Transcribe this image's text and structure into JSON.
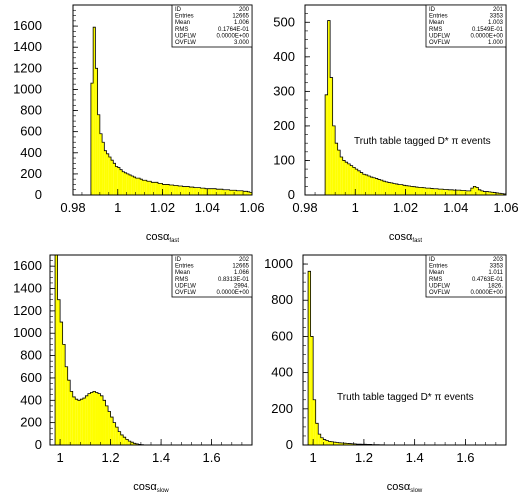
{
  "colors": {
    "fill": "#ffff00",
    "line": "#000000",
    "background": "#ffffff"
  },
  "chart_data": [
    {
      "type": "histogram",
      "xlabel_main": "cosα",
      "xlabel_sub": "fast",
      "xlim": [
        0.98,
        1.06
      ],
      "ylim": [
        0,
        1800
      ],
      "xticks": [
        0.98,
        1,
        1.02,
        1.04,
        1.06
      ],
      "xtick_labels": [
        "0.98",
        "1",
        "1.02",
        "1.04",
        "1.06"
      ],
      "yticks": [
        0,
        200,
        400,
        600,
        800,
        1000,
        1200,
        1400,
        1600
      ],
      "ytick_labels": [
        "0",
        "200",
        "400",
        "600",
        "800",
        "1000",
        "1200",
        "1400",
        "1600"
      ],
      "stats": [
        {
          "label": "ID",
          "value": "200"
        },
        {
          "label": "Entries",
          "value": "12665"
        },
        {
          "label": "Mean",
          "value": "1.006"
        },
        {
          "label": "RMS",
          "value": "0.1764E-01"
        },
        {
          "label": "UDFLW",
          "value": "0.0000E+00"
        },
        {
          "label": "OVFLW",
          "value": "3.000"
        }
      ],
      "annotation": "",
      "bin_start": 0.988,
      "bin_width": 0.001,
      "values": [
        1060,
        1590,
        1200,
        760,
        580,
        500,
        420,
        390,
        360,
        330,
        300,
        270,
        260,
        240,
        220,
        210,
        200,
        190,
        180,
        170,
        160,
        160,
        150,
        140,
        140,
        130,
        130,
        120,
        120,
        120,
        110,
        110,
        100,
        100,
        100,
        95,
        95,
        90,
        90,
        85,
        85,
        80,
        80,
        80,
        75,
        75,
        70,
        70,
        70,
        65,
        65,
        60,
        60,
        60,
        60,
        60,
        55,
        55,
        55,
        50,
        50,
        50,
        45,
        45,
        45,
        40,
        40,
        40,
        35,
        35,
        30,
        25
      ]
    },
    {
      "type": "histogram",
      "xlabel_main": "cosα",
      "xlabel_sub": "fast",
      "xlim": [
        0.98,
        1.06
      ],
      "ylim": [
        0,
        550
      ],
      "xticks": [
        0.98,
        1,
        1.02,
        1.04,
        1.06
      ],
      "xtick_labels": [
        "0.98",
        "1",
        "1.02",
        "1.04",
        "1.06"
      ],
      "yticks": [
        0,
        100,
        200,
        300,
        400,
        500
      ],
      "ytick_labels": [
        "0",
        "100",
        "200",
        "300",
        "400",
        "500"
      ],
      "stats": [
        {
          "label": "ID",
          "value": "201"
        },
        {
          "label": "Entries",
          "value": "3353"
        },
        {
          "label": "Mean",
          "value": "1.003"
        },
        {
          "label": "RMS",
          "value": "0.1549E-01"
        },
        {
          "label": "UDFLW",
          "value": "0.0000E+00"
        },
        {
          "label": "OVFLW",
          "value": "1.000"
        }
      ],
      "annotation": "Truth table tagged D* π events",
      "bin_start": 0.988,
      "bin_width": 0.001,
      "values": [
        290,
        505,
        340,
        200,
        150,
        130,
        110,
        100,
        95,
        90,
        85,
        80,
        75,
        70,
        65,
        60,
        58,
        55,
        52,
        50,
        48,
        45,
        43,
        40,
        38,
        36,
        35,
        33,
        32,
        30,
        30,
        28,
        27,
        26,
        25,
        24,
        23,
        22,
        22,
        21,
        20,
        20,
        19,
        18,
        18,
        17,
        17,
        16,
        16,
        15,
        15,
        14,
        14,
        14,
        13,
        13,
        12,
        12,
        20,
        25,
        22,
        15,
        12,
        10,
        10,
        9,
        8,
        7,
        6,
        5,
        4,
        3
      ]
    },
    {
      "type": "histogram",
      "xlabel_main": "cosα",
      "xlabel_sub": "slow",
      "xlim": [
        0.96,
        1.76
      ],
      "ylim": [
        0,
        1700
      ],
      "xticks": [
        1,
        1.2,
        1.4,
        1.6
      ],
      "xtick_labels": [
        "1",
        "1.2",
        "1.4",
        "1.6"
      ],
      "yticks": [
        0,
        200,
        400,
        600,
        800,
        1000,
        1200,
        1400,
        1600
      ],
      "ytick_labels": [
        "0",
        "200",
        "400",
        "600",
        "800",
        "1000",
        "1200",
        "1400",
        "1600"
      ],
      "stats": [
        {
          "label": "ID",
          "value": "202"
        },
        {
          "label": "Entries",
          "value": "12665"
        },
        {
          "label": "Mean",
          "value": "1.066"
        },
        {
          "label": "RMS",
          "value": "0.8313E-01"
        },
        {
          "label": "UDFLW",
          "value": "2994."
        },
        {
          "label": "OVFLW",
          "value": "0.0000E+00"
        }
      ],
      "annotation": "",
      "bin_start": 0.98,
      "bin_width": 0.01,
      "values": [
        1700,
        1300,
        1100,
        900,
        700,
        580,
        480,
        430,
        410,
        400,
        410,
        420,
        440,
        460,
        470,
        480,
        470,
        460,
        440,
        400,
        350,
        300,
        250,
        200,
        160,
        120,
        90,
        70,
        50,
        35,
        25,
        15,
        10,
        5,
        3
      ]
    },
    {
      "type": "histogram",
      "xlabel_main": "cosα",
      "xlabel_sub": "slow",
      "xlim": [
        0.96,
        1.76
      ],
      "ylim": [
        0,
        1050
      ],
      "xticks": [
        1,
        1.2,
        1.4,
        1.6
      ],
      "xtick_labels": [
        "1",
        "1.2",
        "1.4",
        "1.6"
      ],
      "yticks": [
        0,
        200,
        400,
        600,
        800,
        1000
      ],
      "ytick_labels": [
        "0",
        "200",
        "400",
        "600",
        "800",
        "1000"
      ],
      "stats": [
        {
          "label": "ID",
          "value": "203"
        },
        {
          "label": "Entries",
          "value": "3353"
        },
        {
          "label": "Mean",
          "value": "1.011"
        },
        {
          "label": "RMS",
          "value": "0.4763E-01"
        },
        {
          "label": "UDFLW",
          "value": "1826."
        },
        {
          "label": "OVFLW",
          "value": "0.0000E+00"
        }
      ],
      "annotation": "Truth table tagged D* π events",
      "bin_start": 0.98,
      "bin_width": 0.01,
      "values": [
        960,
        600,
        250,
        120,
        60,
        40,
        30,
        25,
        20,
        18,
        16,
        14,
        12,
        11,
        10,
        9,
        8,
        7,
        6,
        5,
        5,
        4,
        4,
        3,
        3,
        2,
        2,
        2,
        1,
        1
      ]
    }
  ]
}
